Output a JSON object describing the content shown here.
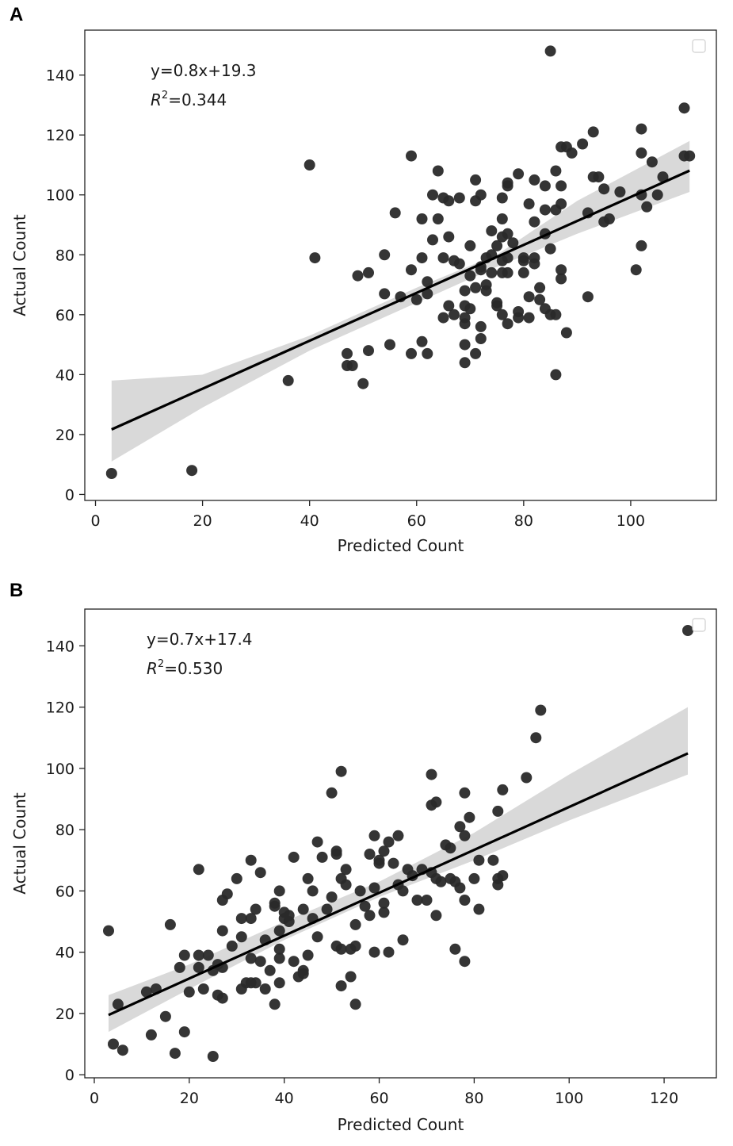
{
  "chart_data": [
    {
      "type": "scatter",
      "panel": "A",
      "xlabel": "Predicted Count",
      "ylabel": "Actual Count",
      "xlim": [
        -2,
        116
      ],
      "ylim": [
        -2,
        155
      ],
      "xticks": [
        0,
        20,
        40,
        60,
        80,
        100
      ],
      "yticks": [
        0,
        20,
        40,
        60,
        80,
        100,
        120,
        140
      ],
      "annotation_eq": "y=0.8x+19.3",
      "annotation_r2_prefix": "R",
      "annotation_r2_sup": "2",
      "annotation_r2_value": "=0.344",
      "legend": "top-right (empty)",
      "fit": {
        "slope": 0.8,
        "intercept": 19.3,
        "x_range": [
          3,
          111
        ],
        "ci_edges": [
          [
            3,
            38,
            11
          ],
          [
            20,
            40,
            29
          ],
          [
            40,
            53,
            48
          ],
          [
            60,
            69,
            64
          ],
          [
            75,
            80,
            76
          ],
          [
            90,
            98,
            87
          ],
          [
            111,
            118,
            101
          ]
        ]
      },
      "points": [
        [
          3,
          7
        ],
        [
          18,
          8
        ],
        [
          36,
          38
        ],
        [
          40,
          110
        ],
        [
          41,
          79
        ],
        [
          47,
          43
        ],
        [
          47,
          47
        ],
        [
          48,
          43
        ],
        [
          49,
          73
        ],
        [
          50,
          37
        ],
        [
          51,
          48
        ],
        [
          51,
          74
        ],
        [
          54,
          80
        ],
        [
          54,
          67
        ],
        [
          55,
          50
        ],
        [
          56,
          94
        ],
        [
          57,
          66
        ],
        [
          59,
          47
        ],
        [
          59,
          75
        ],
        [
          59,
          113
        ],
        [
          60,
          65
        ],
        [
          61,
          51
        ],
        [
          61,
          79
        ],
        [
          61,
          92
        ],
        [
          62,
          67
        ],
        [
          62,
          71
        ],
        [
          62,
          47
        ],
        [
          63,
          85
        ],
        [
          63,
          100
        ],
        [
          64,
          108
        ],
        [
          64,
          92
        ],
        [
          65,
          79
        ],
        [
          65,
          59
        ],
        [
          65,
          99
        ],
        [
          66,
          86
        ],
        [
          66,
          63
        ],
        [
          66,
          98
        ],
        [
          67,
          60
        ],
        [
          67,
          78
        ],
        [
          68,
          99
        ],
        [
          68,
          77
        ],
        [
          69,
          59
        ],
        [
          69,
          63
        ],
        [
          69,
          57
        ],
        [
          69,
          50
        ],
        [
          69,
          44
        ],
        [
          69,
          68
        ],
        [
          70,
          83
        ],
        [
          70,
          62
        ],
        [
          70,
          73
        ],
        [
          71,
          47
        ],
        [
          71,
          69
        ],
        [
          71,
          98
        ],
        [
          71,
          105
        ],
        [
          72,
          52
        ],
        [
          72,
          100
        ],
        [
          72,
          56
        ],
        [
          72,
          75
        ],
        [
          72,
          76
        ],
        [
          73,
          70
        ],
        [
          73,
          68
        ],
        [
          73,
          79
        ],
        [
          74,
          80
        ],
        [
          74,
          88
        ],
        [
          74,
          74
        ],
        [
          75,
          64
        ],
        [
          75,
          63
        ],
        [
          75,
          83
        ],
        [
          76,
          78
        ],
        [
          76,
          74
        ],
        [
          76,
          60
        ],
        [
          76,
          86
        ],
        [
          76,
          92
        ],
        [
          76,
          99
        ],
        [
          77,
          57
        ],
        [
          77,
          103
        ],
        [
          77,
          104
        ],
        [
          77,
          87
        ],
        [
          77,
          79
        ],
        [
          77,
          74
        ],
        [
          78,
          84
        ],
        [
          79,
          59
        ],
        [
          79,
          61
        ],
        [
          79,
          107
        ],
        [
          80,
          78
        ],
        [
          80,
          74
        ],
        [
          80,
          79
        ],
        [
          81,
          59
        ],
        [
          81,
          66
        ],
        [
          81,
          97
        ],
        [
          82,
          105
        ],
        [
          82,
          79
        ],
        [
          82,
          77
        ],
        [
          82,
          91
        ],
        [
          83,
          69
        ],
        [
          83,
          65
        ],
        [
          84,
          95
        ],
        [
          84,
          62
        ],
        [
          84,
          103
        ],
        [
          84,
          87
        ],
        [
          85,
          148
        ],
        [
          85,
          60
        ],
        [
          85,
          82
        ],
        [
          86,
          108
        ],
        [
          86,
          95
        ],
        [
          86,
          40
        ],
        [
          86,
          60
        ],
        [
          87,
          116
        ],
        [
          87,
          103
        ],
        [
          87,
          97
        ],
        [
          87,
          75
        ],
        [
          87,
          72
        ],
        [
          88,
          54
        ],
        [
          88,
          116
        ],
        [
          89,
          114
        ],
        [
          91,
          117
        ],
        [
          92,
          94
        ],
        [
          92,
          66
        ],
        [
          93,
          106
        ],
        [
          93,
          121
        ],
        [
          94,
          106
        ],
        [
          95,
          91
        ],
        [
          95,
          102
        ],
        [
          96,
          92
        ],
        [
          98,
          101
        ],
        [
          101,
          75
        ],
        [
          102,
          122
        ],
        [
          102,
          114
        ],
        [
          102,
          100
        ],
        [
          102,
          83
        ],
        [
          103,
          96
        ],
        [
          104,
          111
        ],
        [
          105,
          100
        ],
        [
          106,
          106
        ],
        [
          110,
          129
        ],
        [
          110,
          113
        ],
        [
          111,
          113
        ]
      ]
    },
    {
      "type": "scatter",
      "panel": "B",
      "xlabel": "Predicted Count",
      "ylabel": "Actual Count",
      "xlim": [
        -2,
        131
      ],
      "ylim": [
        -1,
        152
      ],
      "xticks": [
        0,
        20,
        40,
        60,
        80,
        100,
        120
      ],
      "yticks": [
        0,
        20,
        40,
        60,
        80,
        100,
        120,
        140
      ],
      "annotation_eq": "y=0.7x+17.4",
      "annotation_r2_prefix": "R",
      "annotation_r2_sup": "2",
      "annotation_r2_value": "=0.530",
      "legend": "top-right (empty)",
      "fit": {
        "slope": 0.7,
        "intercept": 17.4,
        "x_range": [
          3,
          125
        ],
        "ci_edges": [
          [
            3,
            26,
            14
          ],
          [
            20,
            36,
            28
          ],
          [
            40,
            50,
            44
          ],
          [
            60,
            63,
            58
          ],
          [
            80,
            79,
            70
          ],
          [
            100,
            98,
            83
          ],
          [
            125,
            120,
            98
          ]
        ]
      },
      "points": [
        [
          3,
          47
        ],
        [
          4,
          10
        ],
        [
          5,
          23
        ],
        [
          6,
          8
        ],
        [
          11,
          27
        ],
        [
          12,
          13
        ],
        [
          13,
          28
        ],
        [
          15,
          19
        ],
        [
          16,
          49
        ],
        [
          17,
          7
        ],
        [
          18,
          35
        ],
        [
          19,
          14
        ],
        [
          19,
          39
        ],
        [
          20,
          27
        ],
        [
          22,
          67
        ],
        [
          22,
          39
        ],
        [
          22,
          35
        ],
        [
          23,
          28
        ],
        [
          24,
          39
        ],
        [
          25,
          34
        ],
        [
          25,
          6
        ],
        [
          26,
          36
        ],
        [
          26,
          26
        ],
        [
          27,
          57
        ],
        [
          27,
          47
        ],
        [
          27,
          35
        ],
        [
          27,
          25
        ],
        [
          28,
          59
        ],
        [
          29,
          42
        ],
        [
          30,
          64
        ],
        [
          31,
          51
        ],
        [
          31,
          45
        ],
        [
          31,
          28
        ],
        [
          32,
          30
        ],
        [
          33,
          70
        ],
        [
          33,
          51
        ],
        [
          33,
          38
        ],
        [
          33,
          30
        ],
        [
          34,
          54
        ],
        [
          34,
          30
        ],
        [
          35,
          66
        ],
        [
          35,
          37
        ],
        [
          36,
          44
        ],
        [
          36,
          28
        ],
        [
          37,
          34
        ],
        [
          38,
          56
        ],
        [
          38,
          23
        ],
        [
          38,
          55
        ],
        [
          39,
          60
        ],
        [
          39,
          47
        ],
        [
          39,
          41
        ],
        [
          39,
          38
        ],
        [
          39,
          30
        ],
        [
          40,
          51
        ],
        [
          40,
          53
        ],
        [
          41,
          50
        ],
        [
          41,
          52
        ],
        [
          42,
          71
        ],
        [
          42,
          37
        ],
        [
          43,
          32
        ],
        [
          44,
          34
        ],
        [
          44,
          33
        ],
        [
          44,
          54
        ],
        [
          45,
          64
        ],
        [
          45,
          39
        ],
        [
          46,
          60
        ],
        [
          46,
          51
        ],
        [
          47,
          76
        ],
        [
          47,
          45
        ],
        [
          48,
          71
        ],
        [
          49,
          54
        ],
        [
          50,
          92
        ],
        [
          50,
          58
        ],
        [
          51,
          73
        ],
        [
          51,
          72
        ],
        [
          51,
          42
        ],
        [
          52,
          99
        ],
        [
          52,
          64
        ],
        [
          52,
          29
        ],
        [
          52,
          41
        ],
        [
          53,
          67
        ],
        [
          53,
          62
        ],
        [
          54,
          41
        ],
        [
          54,
          32
        ],
        [
          55,
          49
        ],
        [
          55,
          42
        ],
        [
          55,
          23
        ],
        [
          56,
          60
        ],
        [
          57,
          55
        ],
        [
          58,
          72
        ],
        [
          58,
          52
        ],
        [
          59,
          78
        ],
        [
          59,
          61
        ],
        [
          59,
          40
        ],
        [
          60,
          69
        ],
        [
          60,
          70
        ],
        [
          61,
          73
        ],
        [
          61,
          56
        ],
        [
          61,
          53
        ],
        [
          62,
          76
        ],
        [
          62,
          40
        ],
        [
          63,
          69
        ],
        [
          64,
          78
        ],
        [
          64,
          62
        ],
        [
          65,
          60
        ],
        [
          65,
          44
        ],
        [
          66,
          67
        ],
        [
          67,
          65
        ],
        [
          68,
          57
        ],
        [
          69,
          67
        ],
        [
          70,
          57
        ],
        [
          71,
          98
        ],
        [
          71,
          88
        ],
        [
          71,
          66
        ],
        [
          72,
          89
        ],
        [
          72,
          64
        ],
        [
          72,
          52
        ],
        [
          73,
          63
        ],
        [
          74,
          75
        ],
        [
          75,
          64
        ],
        [
          75,
          74
        ],
        [
          76,
          41
        ],
        [
          76,
          63
        ],
        [
          77,
          81
        ],
        [
          77,
          61
        ],
        [
          78,
          92
        ],
        [
          78,
          78
        ],
        [
          78,
          57
        ],
        [
          78,
          37
        ],
        [
          79,
          84
        ],
        [
          80,
          64
        ],
        [
          81,
          70
        ],
        [
          81,
          54
        ],
        [
          84,
          70
        ],
        [
          85,
          86
        ],
        [
          85,
          62
        ],
        [
          85,
          64
        ],
        [
          86,
          93
        ],
        [
          86,
          65
        ],
        [
          91,
          97
        ],
        [
          93,
          110
        ],
        [
          94,
          119
        ],
        [
          125,
          145
        ]
      ]
    }
  ]
}
